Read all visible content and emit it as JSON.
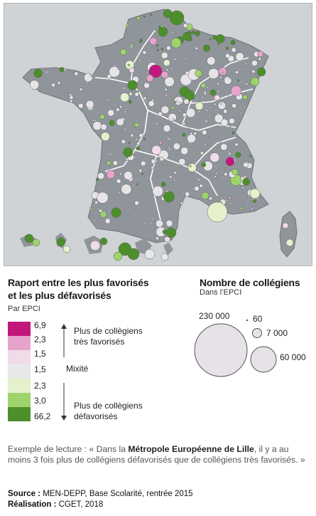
{
  "legend_ratio": {
    "title_line1": "Raport entre les plus favorisés",
    "title_line2": "et les plus défavorisés",
    "subtitle": "Par EPCI",
    "classes": [
      {
        "value": "6,9",
        "color": "#c2187d"
      },
      {
        "value": "2,3",
        "color": "#e7a3cb"
      },
      {
        "value": "1,5",
        "color": "#f0dbe8"
      },
      {
        "value": "1,5",
        "color": "#e8e8ea"
      },
      {
        "value": "2,3",
        "color": "#e4f1cc"
      },
      {
        "value": "3,0",
        "color": "#9fd36b"
      },
      {
        "value": "66,2",
        "color": "#4d8f2b"
      }
    ],
    "label_top_line1": "Plus de collègiens",
    "label_top_line2": "très favorisés",
    "label_mid": "Mixité",
    "label_bottom_line1": "Plus de collègiens",
    "label_bottom_line2": "défavorisés"
  },
  "legend_size": {
    "title": "Nombre de collégiens",
    "subtitle": "Dans l’EPCI",
    "values": [
      "230 000",
      "60",
      "7 000",
      "60 000"
    ],
    "circle_fill": "#e6e2e8"
  },
  "reading_example": {
    "prefix": "Exemple de lecture : « Dans la ",
    "emphasis": "Métropole Européenne de Lille",
    "suffix": ", il y a au moins 3 fois plus de collégiens défavorisés que de collégiens très favorisés. »"
  },
  "credits": {
    "source_label": "Source :",
    "source_text": " MEN-DEPP, Base Scolarité, rentrée 2015",
    "author_label": "Réalisation :",
    "author_text": " CGET, 2018"
  },
  "map_colors": {
    "sea": "#cfd3d6",
    "land": "#8f959a",
    "border": "#ffffff",
    "neutral_circle": "#e7e4e8"
  }
}
